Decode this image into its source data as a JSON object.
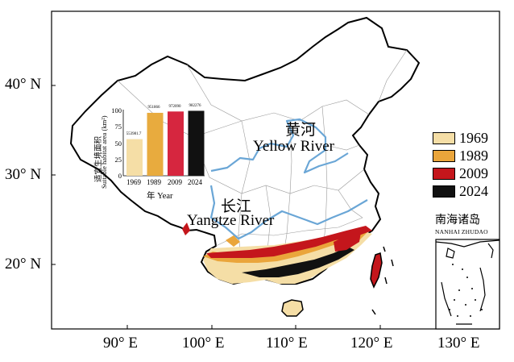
{
  "map": {
    "lat_labels": [
      "40° N",
      "30° N",
      "20° N"
    ],
    "lon_labels": [
      "90° E",
      "100° E",
      "110° E",
      "120° E",
      "130° E"
    ],
    "rivers": {
      "yellow_cn": "黄河",
      "yellow_en": "Yellow River",
      "yangtze_cn": "长江",
      "yangtze_en": "Yangtze River"
    },
    "inset": {
      "title": "南海诸岛",
      "subtitle": "NANHAI ZHUDAO"
    }
  },
  "legend": {
    "items": [
      {
        "label": "1969",
        "color": "#f5dea6"
      },
      {
        "label": "1989",
        "color": "#eaa53b"
      },
      {
        "label": "2009",
        "color": "#c4161c"
      },
      {
        "label": "2024",
        "color": "#111111"
      }
    ]
  },
  "chart_data": {
    "type": "bar",
    "categories": [
      "1969",
      "1989",
      "2009",
      "2024"
    ],
    "values": [
      553981.7,
      951866,
      972090,
      982276
    ],
    "value_labels": [
      "553981.7",
      "951866",
      "972090",
      "982276"
    ],
    "bar_colors": [
      "#f5dea6",
      "#e8ab3e",
      "#d6263f",
      "#111111"
    ],
    "ylabel_cn": "适宜生境面积",
    "ylabel_en": "Suitable habitat area (km²)",
    "xlabel": "年 Year",
    "yticks": [
      "0",
      "25",
      "50",
      "75",
      "100"
    ],
    "ylim": [
      0,
      100
    ]
  }
}
